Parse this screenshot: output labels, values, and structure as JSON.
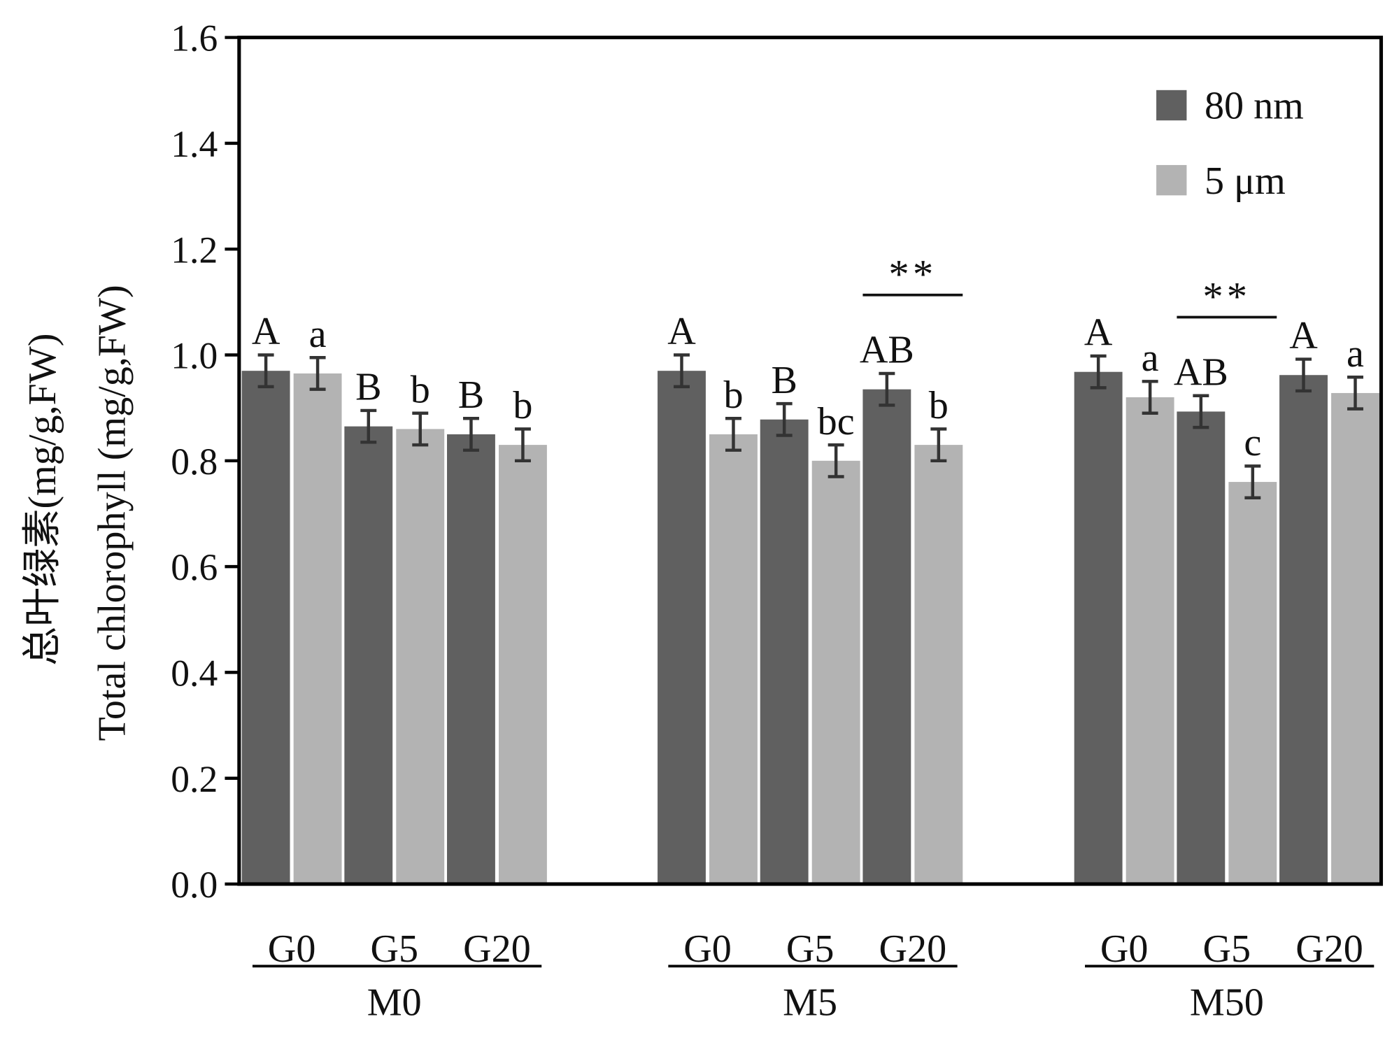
{
  "chart_data": {
    "type": "bar",
    "title": "",
    "ylabel_cn": "总叶绿素",
    "ylabel_cn_unit": "(mg/g,FW)",
    "ylabel_en": "Total chlorophyll",
    "ylabel_en_unit": "(mg/g,FW)",
    "ylim": [
      0,
      1.6
    ],
    "yticks": [
      "0.0",
      "0.2",
      "0.4",
      "0.6",
      "0.8",
      "1.0",
      "1.2",
      "1.4",
      "1.6"
    ],
    "groups": [
      {
        "name": "M0",
        "subcategories": [
          "G0",
          "G5",
          "G20"
        ]
      },
      {
        "name": "M5",
        "subcategories": [
          "G0",
          "G5",
          "G20"
        ]
      },
      {
        "name": "M50",
        "subcategories": [
          "G0",
          "G5",
          "G20"
        ]
      }
    ],
    "series": [
      {
        "name": "80 nm",
        "color": "#606060",
        "values": [
          0.97,
          0.865,
          0.85,
          0.97,
          0.878,
          0.935,
          0.968,
          0.893,
          0.962
        ],
        "errors": [
          0.03,
          0.03,
          0.03,
          0.03,
          0.03,
          0.03,
          0.03,
          0.03,
          0.03
        ],
        "letters": [
          "A",
          "B",
          "B",
          "A",
          "B",
          "AB",
          "A",
          "AB",
          "A"
        ]
      },
      {
        "name": "5 μm",
        "color": "#b3b3b3",
        "values": [
          0.965,
          0.86,
          0.83,
          0.85,
          0.8,
          0.83,
          0.92,
          0.76,
          0.928
        ],
        "errors": [
          0.03,
          0.03,
          0.03,
          0.03,
          0.03,
          0.03,
          0.03,
          0.03,
          0.03
        ],
        "letters": [
          "a",
          "b",
          "b",
          "b",
          "bc",
          "b",
          "a",
          "c",
          "a"
        ]
      }
    ],
    "significance": [
      {
        "group_index": 1,
        "subcategory_index": 2,
        "label": "**"
      },
      {
        "group_index": 2,
        "subcategory_index": 1,
        "label": "**"
      }
    ],
    "legend_position": "top-right",
    "grid": false
  }
}
